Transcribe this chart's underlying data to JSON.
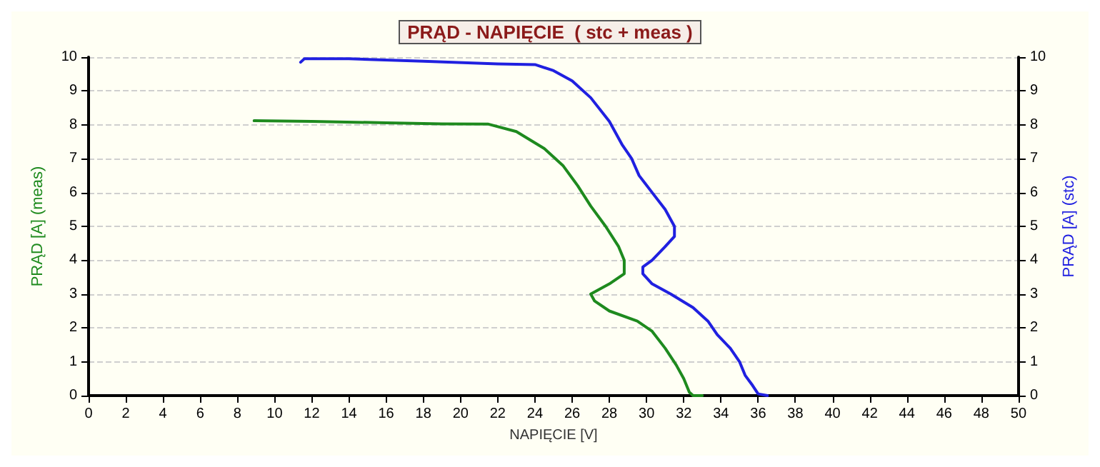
{
  "chart_data": {
    "type": "line",
    "title": "PRĄD - NAPIĘCIE  ( stc + meas )",
    "xlabel": "NAPIĘCIE [V]",
    "ylabel": "PRĄD [A] (meas)",
    "y2label": "PRĄD [A] (stc)",
    "xlim": [
      0,
      50
    ],
    "xticks": [
      0,
      2,
      4,
      6,
      8,
      10,
      12,
      14,
      16,
      18,
      20,
      22,
      24,
      26,
      28,
      30,
      32,
      34,
      36,
      38,
      40,
      42,
      44,
      46,
      48,
      50
    ],
    "ylim": [
      0,
      10
    ],
    "yticks": [
      0,
      1,
      2,
      3,
      4,
      5,
      6,
      7,
      8,
      9,
      10
    ],
    "y2lim": [
      0,
      10
    ],
    "y2ticks": [
      0,
      1,
      2,
      3,
      4,
      5,
      6,
      7,
      8,
      9,
      10
    ],
    "grid": "y",
    "marker": "none",
    "line_style": "solid",
    "series": [
      {
        "color": "#1e8a1e",
        "x": [
          8.9,
          12,
          16,
          19,
          21.5,
          23,
          24.5,
          25.5,
          26.3,
          27,
          27.8,
          28.5,
          28.8,
          28.8,
          28,
          27,
          27.2,
          28,
          29.5,
          30.3,
          31,
          31.6,
          32,
          32.3,
          32.5,
          33
        ],
        "values": [
          8.12,
          8.1,
          8.06,
          8.03,
          8.02,
          7.8,
          7.3,
          6.8,
          6.2,
          5.6,
          5,
          4.4,
          4,
          3.6,
          3.3,
          3,
          2.8,
          2.5,
          2.2,
          1.9,
          1.4,
          0.9,
          0.5,
          0.1,
          0,
          0
        ]
      },
      {
        "color": "#2020e0",
        "axis": "y2",
        "x": [
          11.4,
          11.6,
          14,
          18,
          22,
          24,
          25,
          26,
          27,
          28,
          28.7,
          29.2,
          29.6,
          30.3,
          31,
          31.5,
          31.5,
          31,
          30.3,
          29.8,
          29.8,
          30.3,
          31.3,
          32.5,
          33.3,
          33.8,
          34.5,
          35,
          35.3,
          35.7,
          36,
          36.5
        ],
        "values": [
          9.85,
          9.95,
          9.95,
          9.88,
          9.8,
          9.78,
          9.6,
          9.3,
          8.8,
          8.1,
          7.4,
          7,
          6.5,
          6,
          5.5,
          5,
          4.7,
          4.4,
          4,
          3.8,
          3.6,
          3.3,
          3,
          2.6,
          2.2,
          1.8,
          1.4,
          1,
          0.6,
          0.3,
          0.05,
          0
        ]
      }
    ]
  }
}
